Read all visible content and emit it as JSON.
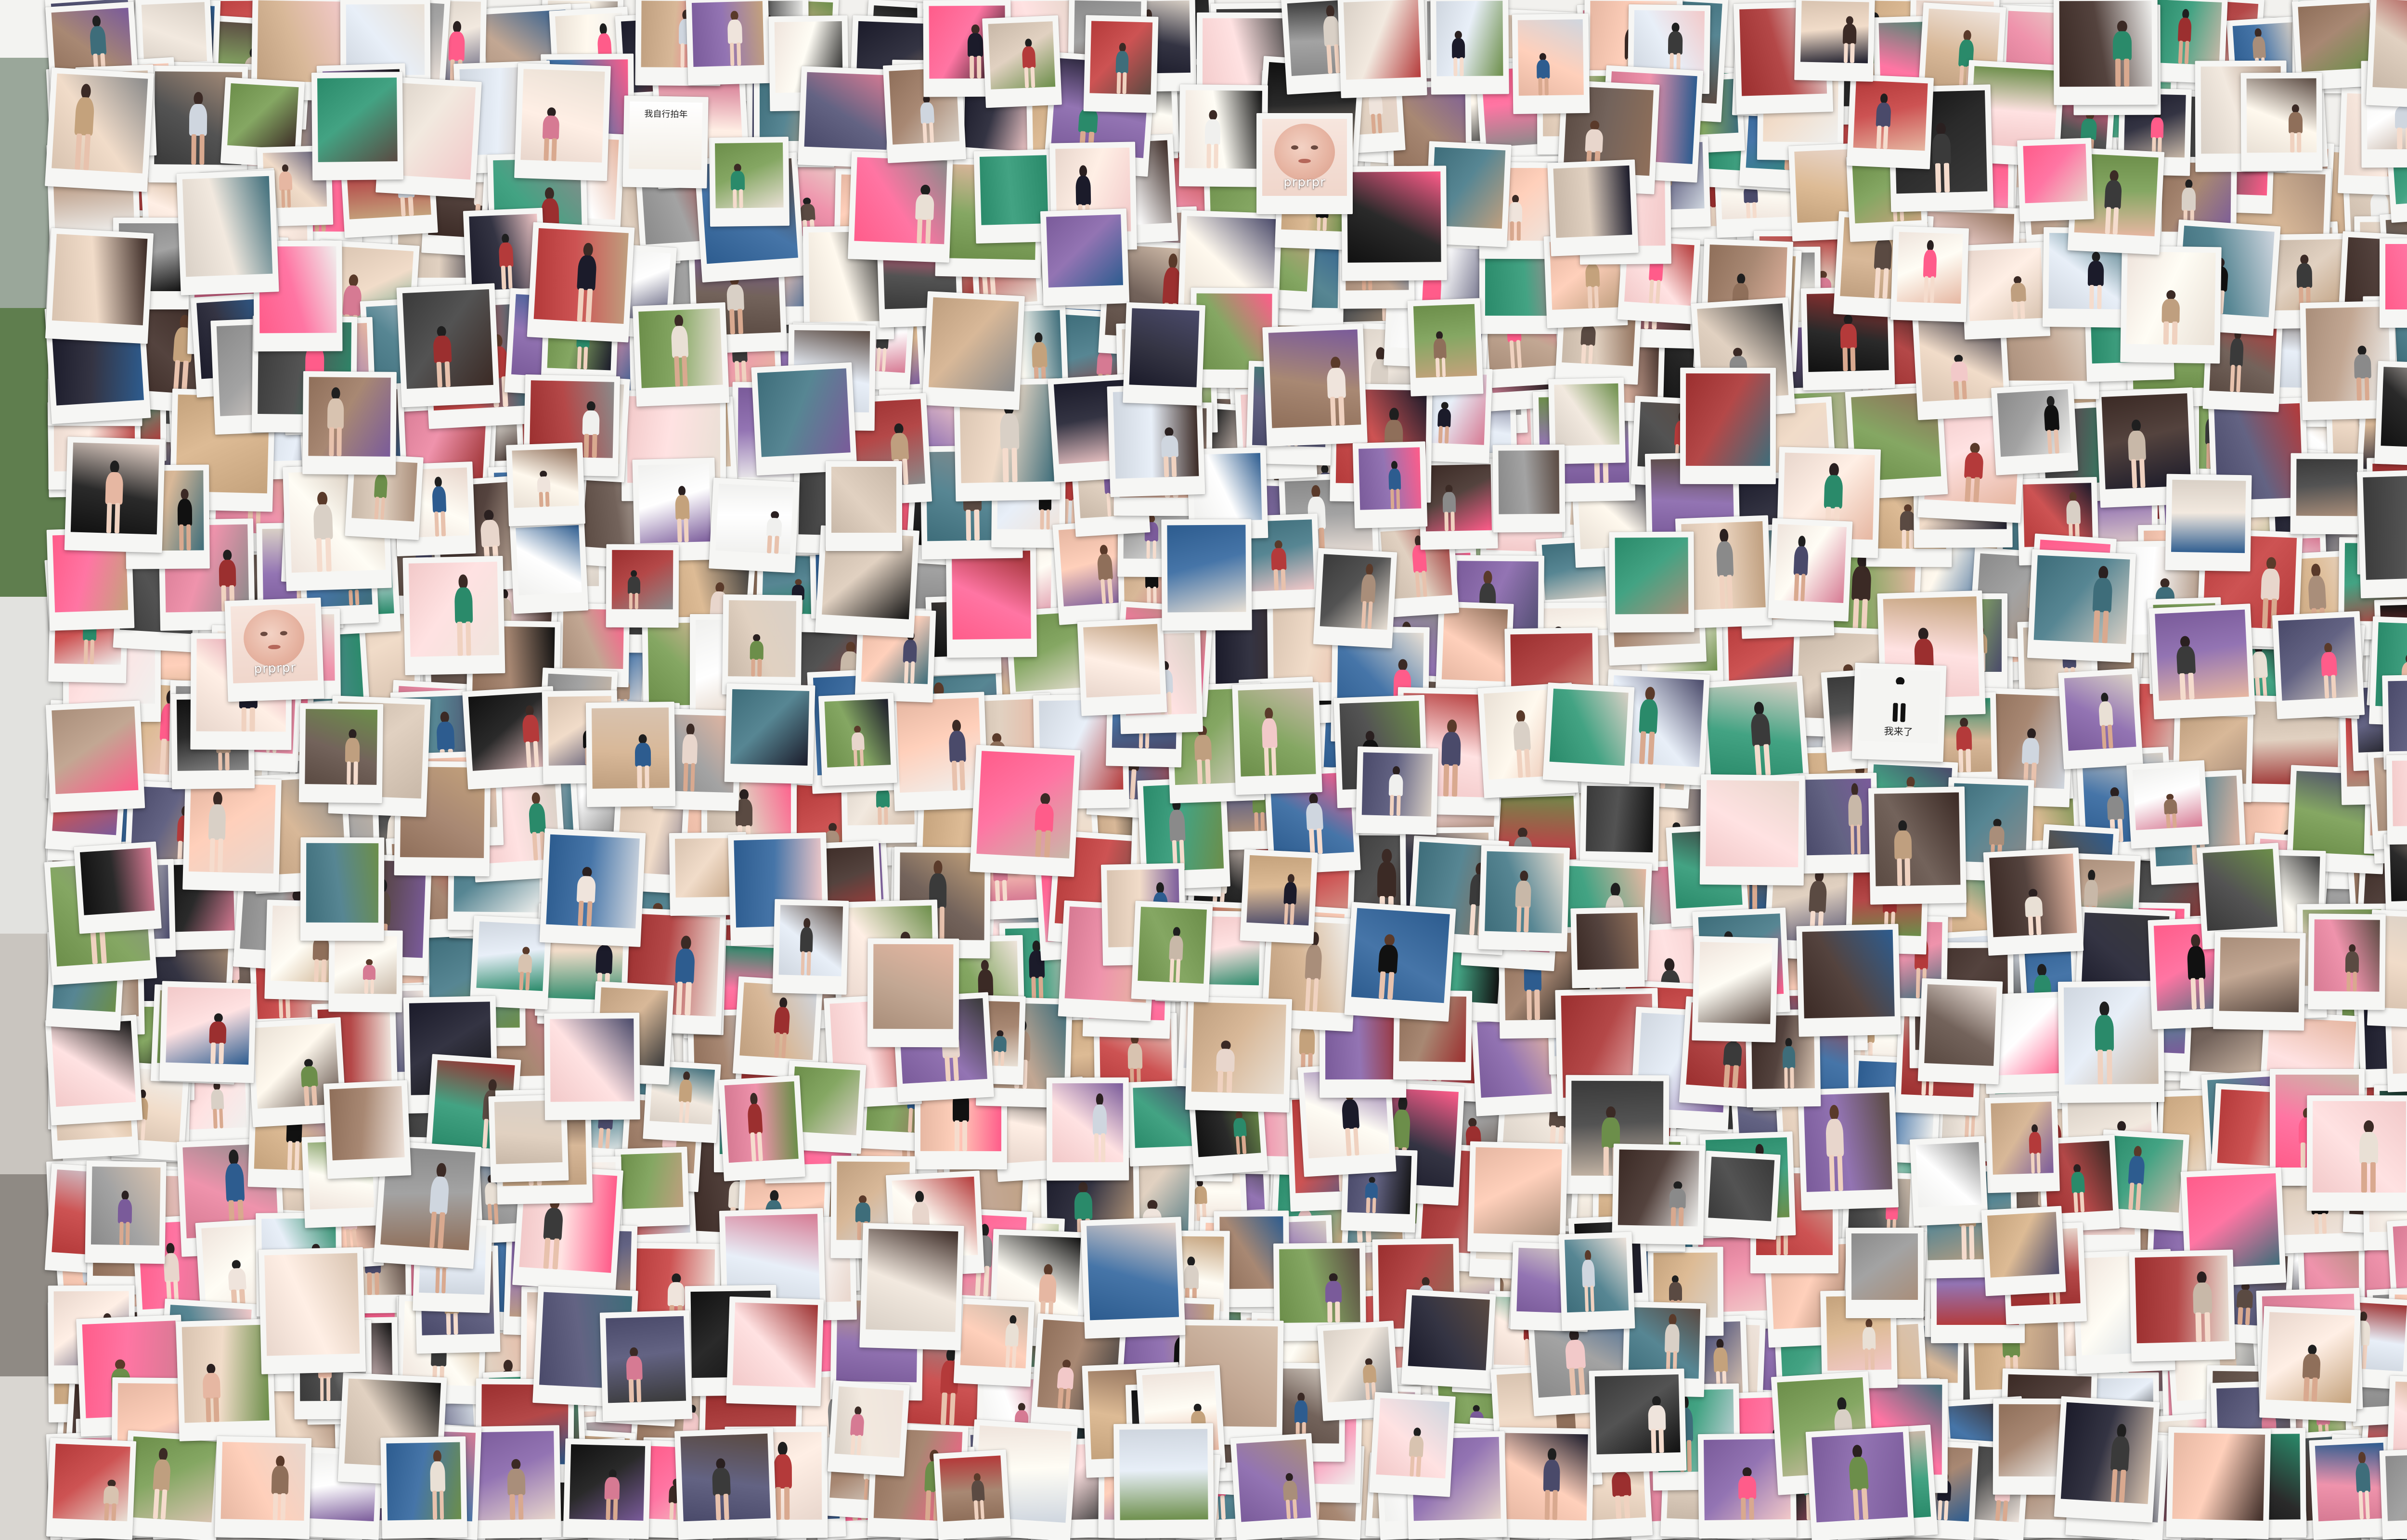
{
  "desktop": {
    "background": "#eceae6",
    "left_backdrop": [
      {
        "color": "#f3f3f1"
      },
      {
        "color": "#9aa79a"
      },
      {
        "color": "#5f7e4e"
      },
      {
        "color": "#e2e2df"
      },
      {
        "color": "#c9c5bf"
      },
      {
        "color": "#8f8a84"
      },
      {
        "color": "#d9d6d1"
      }
    ]
  },
  "collage": {
    "description_of_content": "",
    "captions": {
      "blob_1": "prprpr",
      "blob_2": "prprpr",
      "sign_note": "我来了",
      "shop_sign": "我自行拍年"
    },
    "palette": [
      "#f2c9c9",
      "#3a3a3a",
      "#c8b8a8",
      "#e9e0d5",
      "#8f6f5a",
      "#b43a3a",
      "#2d5c8f",
      "#6c8e4a",
      "#d8c3b0",
      "#111111",
      "#e8d6cc",
      "#a98e7a",
      "#5a4a42",
      "#cfd6df",
      "#7a5b9a",
      "#d67a93",
      "#f0f0ee",
      "#3e6d7a",
      "#c4a27c",
      "#9b2f2f",
      "#e6b7a2",
      "#4a4a6a",
      "#2a8a6a",
      "#d9d0c6",
      "#8a8a8a",
      "#bf9f7f",
      "#3b2a25",
      "#efe4dc",
      "#ff5c8a",
      "#1b1b2a"
    ]
  }
}
